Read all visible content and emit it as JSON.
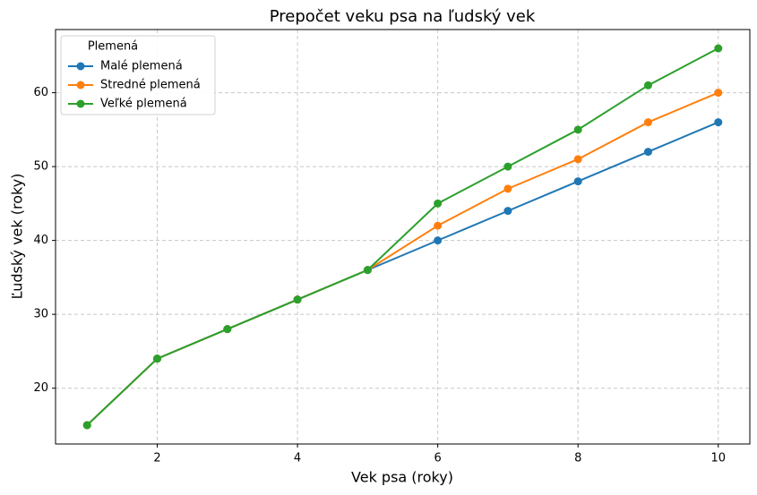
{
  "chart_data": {
    "type": "line",
    "title": "Prepočet veku psa na ľudský vek",
    "x_label": "Vek psa (roky)",
    "y_label": "Ľudský vek (roky)",
    "x": [
      1,
      2,
      3,
      4,
      5,
      6,
      7,
      8,
      9,
      10
    ],
    "series": [
      {
        "name": "Malé plemená",
        "color": "#1f77b4",
        "values": [
          15,
          24,
          28,
          32,
          36,
          40,
          44,
          48,
          52,
          56
        ]
      },
      {
        "name": "Stredné plemená",
        "color": "#ff7f0e",
        "values": [
          15,
          24,
          28,
          32,
          36,
          42,
          47,
          51,
          56,
          60
        ]
      },
      {
        "name": "Veľké plemená",
        "color": "#2ca02c",
        "values": [
          15,
          24,
          28,
          32,
          36,
          45,
          50,
          55,
          61,
          66
        ]
      }
    ],
    "legend_title": "Plemená",
    "legend": "upper left",
    "xlim": [
      0.55,
      10.45
    ],
    "ylim": [
      12.45,
      68.55
    ],
    "xticks": [
      2,
      4,
      6,
      8,
      10
    ],
    "yticks": [
      20,
      30,
      40,
      50,
      60
    ],
    "grid": true
  }
}
